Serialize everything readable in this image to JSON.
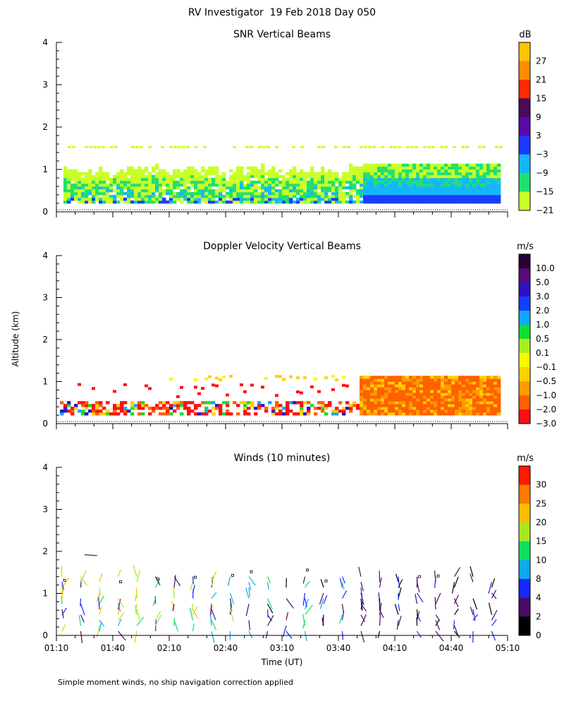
{
  "figure": {
    "title": "RV Investigator  19 Feb 2018 Day 050",
    "ylabel": "Altitude (km)",
    "xlabel": "Time (UT)",
    "footnote": "Simple moment winds, no ship navigation correction applied"
  },
  "chart_data": [
    {
      "type": "heatmap",
      "title": "SNR Vertical Beams",
      "unit": "dB",
      "ylim": [
        0,
        4
      ],
      "yticks": [
        0,
        1,
        2,
        3,
        4
      ],
      "colorbar": {
        "labels": [
          "27",
          "21",
          "15",
          "9",
          "3",
          "−3",
          "−9",
          "−15",
          "−21"
        ],
        "colors": [
          "#ffc400",
          "#ff8c00",
          "#ff2a00",
          "#4b0a5a",
          "#5a0aa8",
          "#1a3cff",
          "#15b6ff",
          "#20e070",
          "#c8ff28"
        ]
      }
    },
    {
      "type": "heatmap",
      "title": "Doppler Velocity Vertical Beams",
      "unit": "m/s",
      "ylim": [
        0,
        4
      ],
      "yticks": [
        0,
        1,
        2,
        3,
        4
      ],
      "colorbar": {
        "labels": [
          "10.0",
          "5.0",
          "3.0",
          "2.0",
          "1.0",
          "0.5",
          "0.1",
          "−0.1",
          "−0.5",
          "−1.0",
          "−2.0",
          "−3.0"
        ],
        "colors": [
          "#2a0030",
          "#5a0a7a",
          "#3010c0",
          "#1040ff",
          "#10a8ff",
          "#10e030",
          "#a8f020",
          "#f8f800",
          "#ffd000",
          "#ff9a00",
          "#ff6000",
          "#ff1010"
        ]
      }
    },
    {
      "type": "scatter",
      "title": "Winds (10 minutes)",
      "unit": "m/s",
      "ylim": [
        0,
        4
      ],
      "yticks": [
        0,
        1,
        2,
        3,
        4
      ],
      "xticks": [
        "01:10",
        "01:40",
        "02:10",
        "02:40",
        "03:10",
        "03:40",
        "04:10",
        "04:40",
        "05:10"
      ],
      "colorbar": {
        "labels": [
          "30",
          "25",
          "20",
          "15",
          "10",
          "8",
          "4",
          "2",
          "0"
        ],
        "colors": [
          "#ff1a00",
          "#ff7a00",
          "#ffbe00",
          "#a8e820",
          "#10e060",
          "#10a8f0",
          "#1428ff",
          "#4a0a6a",
          "#000000"
        ]
      }
    }
  ]
}
